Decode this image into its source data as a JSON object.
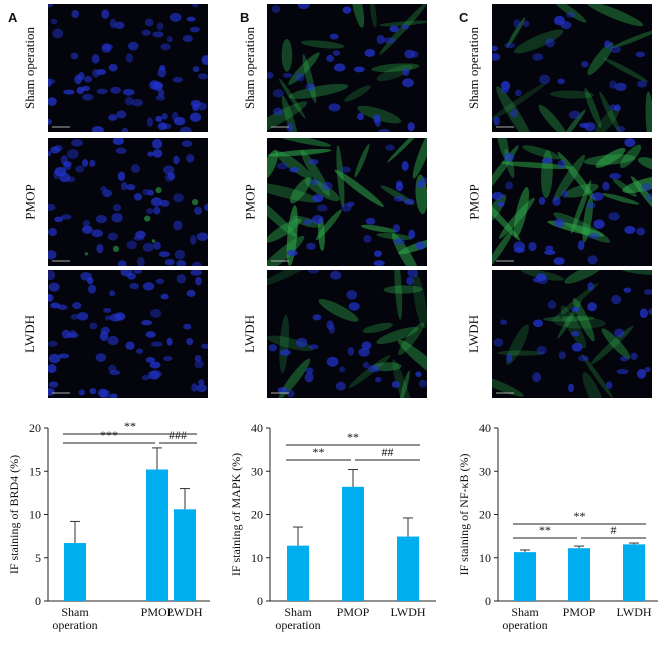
{
  "panels": [
    {
      "letter": "A",
      "stain": "BRD4",
      "rows": [
        "Sham operation",
        "PMOP",
        "LWDH"
      ]
    },
    {
      "letter": "B",
      "stain": "MAPK",
      "rows": [
        "Sham operation",
        "PMOP",
        "LWDH"
      ]
    },
    {
      "letter": "C",
      "stain": "NF-κB",
      "rows": [
        "Sham operation",
        "PMOP",
        "LWDH"
      ]
    }
  ],
  "colors": {
    "bar": "#00aeef",
    "nuclei": "#2233cc",
    "cyto": "#2fa84a"
  },
  "chart_data": [
    {
      "type": "bar",
      "categories": [
        "Sham\noperation",
        "PMOP",
        "LWDH"
      ],
      "values": [
        6.7,
        15.2,
        10.6
      ],
      "errors": [
        2.5,
        2.5,
        2.4
      ],
      "ylabel": "IF staining of BRD4 (%)",
      "ylim": [
        0,
        20
      ],
      "yticks": [
        0,
        5,
        10,
        15,
        20
      ],
      "significance": [
        {
          "from": 0,
          "to": 2,
          "label": "**"
        },
        {
          "from": 0,
          "to": 1,
          "label": "***"
        },
        {
          "from": 1,
          "to": 2,
          "label": "###"
        }
      ]
    },
    {
      "type": "bar",
      "categories": [
        "Sham\noperation",
        "PMOP",
        "LWDH"
      ],
      "values": [
        12.8,
        26.4,
        14.9
      ],
      "errors": [
        4.3,
        4.0,
        4.3
      ],
      "ylabel": "IF staining of MAPK (%)",
      "ylim": [
        0,
        40
      ],
      "yticks": [
        0,
        10,
        20,
        30,
        40
      ],
      "significance": [
        {
          "from": 0,
          "to": 2,
          "label": "**"
        },
        {
          "from": 0,
          "to": 1,
          "label": "**"
        },
        {
          "from": 1,
          "to": 2,
          "label": "##"
        }
      ]
    },
    {
      "type": "bar",
      "categories": [
        "Sham\noperation",
        "PMOP",
        "LWDH"
      ],
      "values": [
        11.3,
        12.2,
        13.1
      ],
      "errors": [
        0.5,
        0.5,
        0.3
      ],
      "ylabel": "IF staining of NF-κB (%)",
      "ylim": [
        0,
        40
      ],
      "yticks": [
        0,
        10,
        20,
        30,
        40
      ],
      "significance": [
        {
          "from": 0,
          "to": 2,
          "label": "**"
        },
        {
          "from": 0,
          "to": 1,
          "label": "**"
        },
        {
          "from": 1,
          "to": 2,
          "label": "#"
        }
      ]
    }
  ]
}
